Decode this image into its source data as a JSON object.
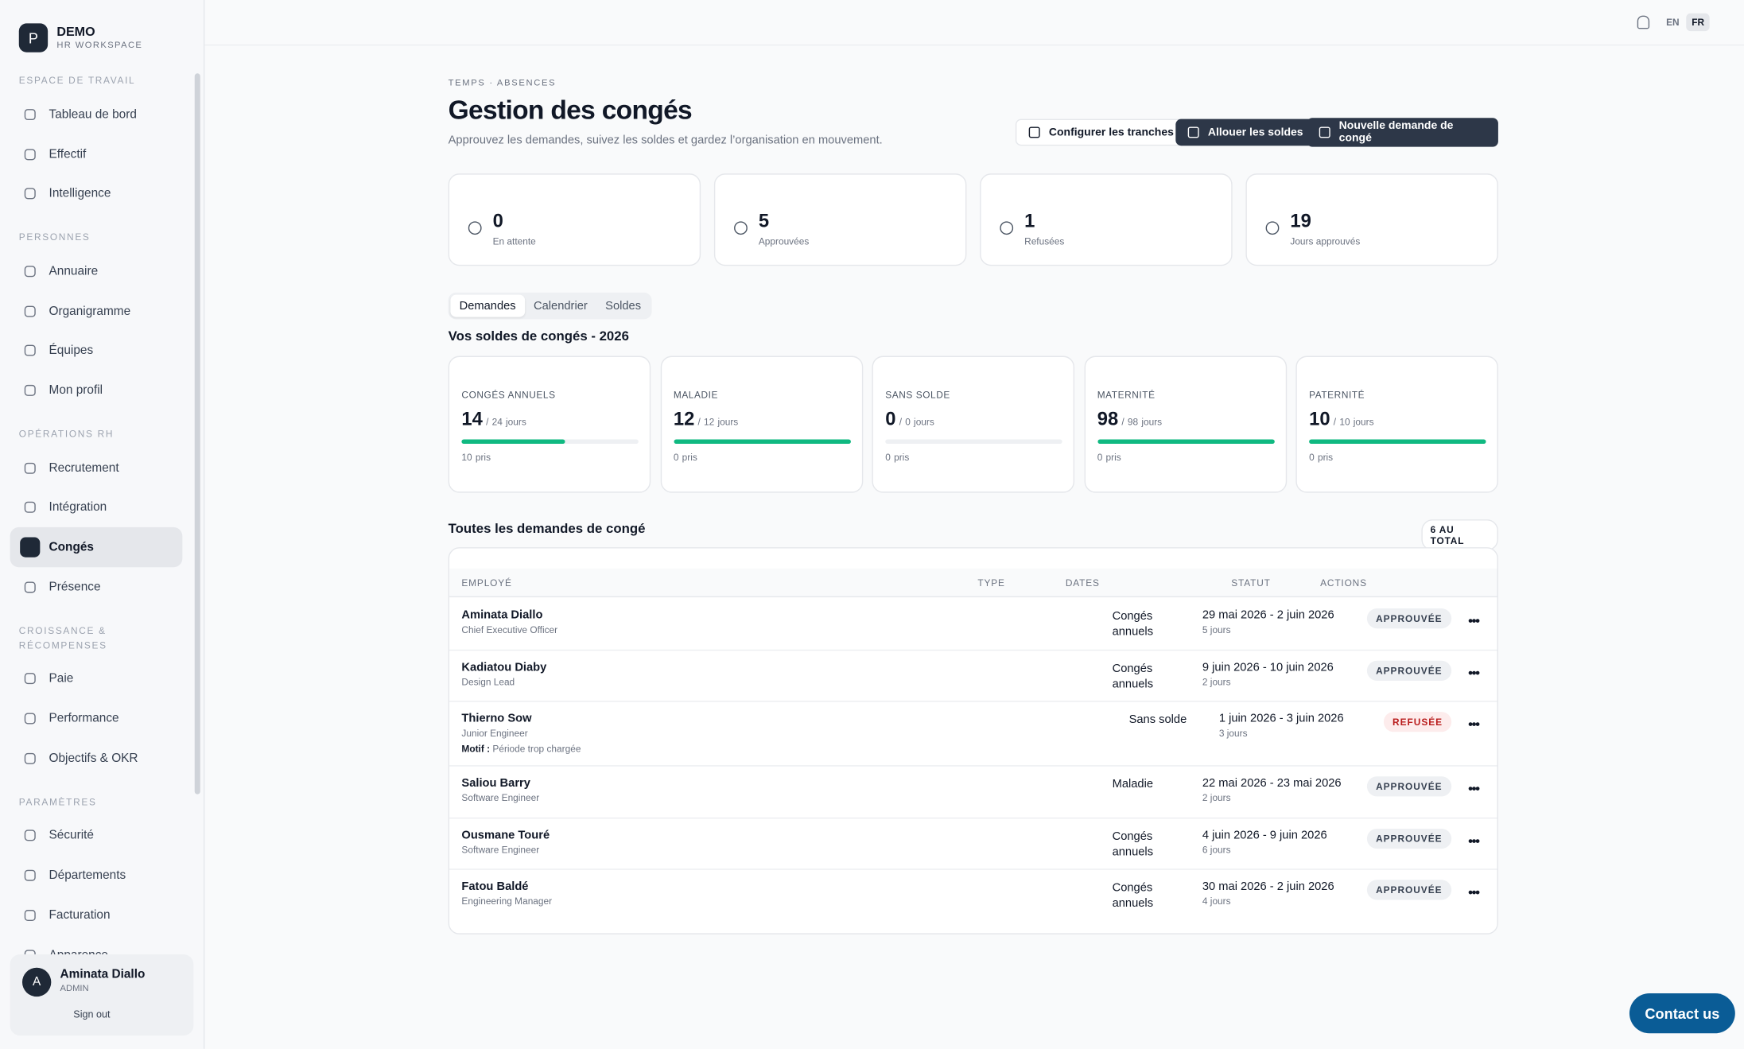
{
  "brand": {
    "initial": "P",
    "name": "DEMO",
    "sub": "HR WORKSPACE"
  },
  "sidebar": {
    "sections": [
      {
        "title": "ESPACE DE TRAVAIL",
        "items": [
          {
            "label": "Tableau de bord"
          },
          {
            "label": "Effectif"
          },
          {
            "label": "Intelligence"
          }
        ]
      },
      {
        "title": "PERSONNES",
        "items": [
          {
            "label": "Annuaire"
          },
          {
            "label": "Organigramme"
          },
          {
            "label": "Équipes"
          },
          {
            "label": "Mon profil"
          }
        ]
      },
      {
        "title": "OPÉRATIONS RH",
        "items": [
          {
            "label": "Recrutement"
          },
          {
            "label": "Intégration"
          },
          {
            "label": "Congés",
            "active": true
          },
          {
            "label": "Présence"
          }
        ]
      },
      {
        "title": "CROISSANCE & RÉCOMPENSES",
        "items": [
          {
            "label": "Paie"
          },
          {
            "label": "Performance"
          },
          {
            "label": "Objectifs & OKR"
          }
        ]
      },
      {
        "title": "PARAMÈTRES",
        "items": [
          {
            "label": "Sécurité"
          },
          {
            "label": "Départements"
          },
          {
            "label": "Facturation"
          },
          {
            "label": "Apparence"
          }
        ]
      }
    ]
  },
  "user": {
    "initial": "A",
    "name": "Aminata Diallo",
    "role": "ADMIN",
    "signout": "Sign out"
  },
  "topbar": {
    "languages": [
      {
        "label": "EN"
      },
      {
        "label": "FR",
        "active": true
      }
    ]
  },
  "header": {
    "breadcrumb": "TEMPS · ABSENCES",
    "title": "Gestion des congés",
    "subtitle": "Approuvez les demandes, suivez les soldes et gardez l’organisation en mouvement.",
    "buttons": [
      "Configurer les tranches",
      "Allouer les soldes",
      "Nouvelle demande de congé"
    ]
  },
  "stats": [
    {
      "value": 0,
      "label": "En attente"
    },
    {
      "value": 5,
      "label": "Approuvées"
    },
    {
      "value": 1,
      "label": "Refusées"
    },
    {
      "value": 19,
      "label": "Jours approuvés"
    }
  ],
  "tabs": [
    {
      "label": "Demandes",
      "active": true
    },
    {
      "label": "Calendrier"
    },
    {
      "label": "Soldes"
    }
  ],
  "balances": {
    "title": "Vos soldes de congés - 2026",
    "separator": "/",
    "unit": "jours",
    "taken_unit": "pris",
    "items": [
      {
        "name": "CONGÉS ANNUELS",
        "remaining": 14,
        "total": 24,
        "taken": 10
      },
      {
        "name": "MALADIE",
        "remaining": 12,
        "total": 12,
        "taken": 0
      },
      {
        "name": "SANS SOLDE",
        "remaining": 0,
        "total": 0,
        "taken": 0
      },
      {
        "name": "MATERNITÉ",
        "remaining": 98,
        "total": 98,
        "taken": 0
      },
      {
        "name": "PATERNITÉ",
        "remaining": 10,
        "total": 10,
        "taken": 0
      }
    ]
  },
  "requests": {
    "title": "Toutes les demandes de congé",
    "total": "6 AU TOTAL",
    "columns": [
      "EMPLOYÉ",
      "TYPE",
      "DATES",
      "STATUT",
      "ACTIONS"
    ],
    "rows": [
      {
        "name": "Aminata Diallo",
        "role": "Chief Executive Officer",
        "type": "Congés annuels",
        "dates": "29 mai 2026 - 2 juin 2026",
        "duration": "5 jours",
        "status": "APPROUVÉE"
      },
      {
        "name": "Kadiatou Diaby",
        "role": "Design Lead",
        "type": "Congés annuels",
        "dates": "9 juin 2026 - 10 juin 2026",
        "duration": "2 jours",
        "status": "APPROUVÉE"
      },
      {
        "name": "Thierno Sow",
        "role": "Junior Engineer",
        "motif_label": "Motif :",
        "motif": "Période trop chargée",
        "type": "Sans solde",
        "dates": "1 juin 2026 - 3 juin 2026",
        "duration": "3 jours",
        "status": "REFUSÉE",
        "refused": true
      },
      {
        "name": "Saliou Barry",
        "role": "Software Engineer",
        "type": "Maladie",
        "dates": "22 mai 2026 - 23 mai 2026",
        "duration": "2 jours",
        "status": "APPROUVÉE"
      },
      {
        "name": "Ousmane Touré",
        "role": "Software Engineer",
        "type": "Congés annuels",
        "dates": "4 juin 2026 - 9 juin 2026",
        "duration": "6 jours",
        "status": "APPROUVÉE"
      },
      {
        "name": "Fatou Baldé",
        "role": "Engineering Manager",
        "type": "Congés annuels",
        "dates": "30 mai 2026 - 2 juin 2026",
        "duration": "4 jours",
        "status": "APPROUVÉE"
      }
    ]
  },
  "contact": "Contact us"
}
